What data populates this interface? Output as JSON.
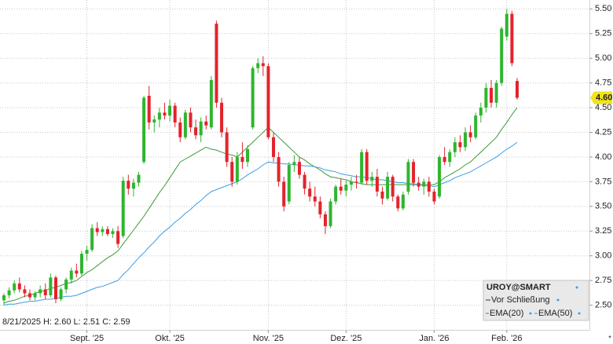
{
  "chart_data": {
    "type": "candlestick",
    "info_line": "8/21/2025 H: 2.60 L: 2.51 C: 2.59",
    "symbol": "UROY@SMART",
    "price_name": "Vor Schließung",
    "up_color": "#2fb52f",
    "down_color": "#e3232c",
    "footnote_mark": "*",
    "categories": [
      null,
      null,
      null,
      null,
      null,
      null,
      null,
      null,
      null,
      null,
      null,
      null,
      null,
      null,
      null,
      null,
      "Sept. '25",
      null,
      null,
      null,
      null,
      null,
      null,
      null,
      null,
      null,
      null,
      null,
      null,
      null,
      null,
      null,
      "Okt. '25",
      null,
      null,
      null,
      null,
      null,
      null,
      null,
      null,
      null,
      null,
      null,
      null,
      null,
      null,
      null,
      null,
      null,
      null,
      "Nov. '25",
      null,
      null,
      null,
      null,
      null,
      null,
      null,
      null,
      null,
      null,
      null,
      null,
      null,
      null,
      "Dez. '25",
      null,
      null,
      null,
      null,
      null,
      null,
      null,
      null,
      null,
      null,
      null,
      null,
      null,
      null,
      null,
      null,
      "Jan. '26",
      null,
      null,
      null,
      null,
      null,
      null,
      null,
      null,
      null,
      null,
      null,
      null,
      null,
      "Feb. '26",
      null,
      null
    ],
    "open": [
      2.55,
      2.6,
      2.65,
      2.72,
      2.66,
      2.62,
      2.58,
      2.62,
      2.66,
      2.6,
      2.78,
      2.56,
      2.66,
      2.76,
      2.85,
      2.82,
      3.02,
      3.06,
      3.28,
      3.24,
      3.27,
      3.22,
      3.25,
      3.2,
      3.76,
      3.68,
      3.74,
      3.95,
      4.62,
      4.35,
      4.38,
      4.45,
      4.42,
      4.52,
      4.35,
      4.2,
      4.45,
      4.3,
      4.22,
      4.36,
      4.3,
      5.35,
      4.55,
      4.25,
      3.95,
      3.75,
      4.0,
      3.95,
      4.3,
      4.9,
      4.95,
      4.92,
      4.2,
      4.0,
      3.75,
      3.55,
      3.92,
      3.95,
      3.82,
      3.68,
      3.6,
      3.55,
      3.42,
      3.3,
      3.55,
      3.7,
      3.66,
      3.72,
      3.75,
      3.74,
      4.05,
      3.76,
      3.8,
      3.65,
      3.58,
      3.8,
      3.6,
      3.48,
      3.65,
      3.95,
      3.74,
      3.7,
      3.75,
      3.65,
      3.6,
      4.0,
      3.95,
      4.05,
      4.15,
      4.1,
      4.25,
      4.2,
      4.42,
      4.5,
      4.7,
      4.55,
      4.75,
      5.22,
      5.45,
      4.77
    ],
    "high": [
      2.62,
      2.68,
      2.75,
      2.78,
      2.7,
      2.66,
      2.64,
      2.7,
      2.72,
      2.82,
      2.8,
      2.68,
      2.78,
      2.88,
      2.92,
      3.05,
      3.1,
      3.32,
      3.34,
      3.3,
      3.3,
      3.28,
      3.3,
      3.8,
      3.82,
      3.78,
      3.85,
      4.62,
      4.72,
      4.42,
      4.5,
      4.55,
      4.58,
      4.55,
      4.4,
      4.48,
      4.5,
      4.38,
      4.4,
      4.42,
      4.82,
      5.38,
      4.6,
      4.3,
      4.0,
      4.05,
      4.15,
      4.12,
      4.92,
      5.0,
      5.02,
      4.95,
      4.25,
      4.05,
      3.8,
      3.95,
      4.02,
      4.0,
      3.85,
      3.75,
      3.7,
      3.6,
      3.45,
      3.58,
      3.72,
      3.78,
      3.76,
      3.8,
      3.82,
      4.08,
      4.08,
      3.85,
      3.88,
      3.7,
      3.85,
      3.82,
      3.62,
      3.65,
      3.98,
      3.98,
      3.8,
      3.78,
      3.8,
      3.68,
      4.02,
      4.1,
      4.08,
      4.2,
      4.22,
      4.3,
      4.32,
      4.45,
      4.55,
      4.75,
      4.78,
      4.78,
      5.32,
      5.5,
      5.48,
      4.8
    ],
    "low": [
      2.5,
      2.57,
      2.62,
      2.63,
      2.58,
      2.55,
      2.55,
      2.58,
      2.56,
      2.58,
      2.52,
      2.54,
      2.62,
      2.72,
      2.78,
      2.8,
      2.95,
      3.04,
      3.2,
      3.2,
      3.2,
      3.18,
      3.08,
      3.18,
      3.62,
      3.6,
      3.7,
      3.93,
      4.28,
      4.25,
      4.3,
      4.38,
      4.36,
      4.3,
      4.15,
      4.18,
      4.25,
      4.18,
      4.15,
      4.28,
      4.28,
      4.5,
      4.2,
      3.9,
      3.7,
      3.72,
      3.88,
      3.9,
      4.28,
      4.85,
      4.82,
      4.18,
      3.95,
      3.7,
      3.45,
      3.52,
      3.85,
      3.78,
      3.62,
      3.55,
      3.5,
      3.38,
      3.22,
      3.28,
      3.52,
      3.62,
      3.6,
      3.66,
      3.68,
      3.72,
      3.72,
      3.7,
      3.6,
      3.52,
      3.56,
      3.55,
      3.45,
      3.46,
      3.62,
      3.7,
      3.66,
      3.62,
      3.6,
      3.52,
      3.58,
      3.92,
      3.9,
      4.0,
      4.05,
      4.06,
      4.15,
      4.18,
      4.35,
      4.45,
      4.5,
      4.5,
      4.72,
      5.18,
      4.92,
      4.58
    ],
    "close": [
      2.6,
      2.65,
      2.72,
      2.66,
      2.62,
      2.58,
      2.62,
      2.66,
      2.6,
      2.78,
      2.56,
      2.66,
      2.76,
      2.85,
      2.82,
      3.02,
      3.06,
      3.28,
      3.24,
      3.27,
      3.22,
      3.25,
      3.12,
      3.76,
      3.68,
      3.74,
      3.82,
      4.6,
      4.35,
      4.38,
      4.45,
      4.42,
      4.52,
      4.35,
      4.2,
      4.45,
      4.3,
      4.22,
      4.36,
      4.32,
      4.78,
      4.55,
      4.25,
      3.95,
      3.75,
      4.0,
      3.95,
      4.08,
      4.9,
      4.95,
      4.92,
      4.2,
      4.0,
      3.75,
      3.5,
      3.92,
      3.95,
      3.82,
      3.68,
      3.6,
      3.55,
      3.42,
      3.3,
      3.55,
      3.7,
      3.66,
      3.72,
      3.75,
      3.74,
      4.05,
      3.76,
      3.8,
      3.65,
      3.58,
      3.8,
      3.6,
      3.48,
      3.62,
      3.95,
      3.74,
      3.7,
      3.75,
      3.65,
      3.55,
      4.0,
      3.95,
      4.05,
      4.15,
      4.1,
      4.25,
      4.2,
      4.42,
      4.5,
      4.7,
      4.55,
      4.75,
      5.3,
      5.45,
      4.95,
      4.6
    ],
    "series": [
      {
        "name": "EMA(20)",
        "color": "#3c9a3c",
        "values": [
          2.52,
          2.54,
          2.55,
          2.57,
          2.59,
          2.6,
          2.62,
          2.64,
          2.65,
          2.67,
          2.68,
          2.7,
          2.72,
          2.73,
          2.75,
          2.79,
          2.83,
          2.86,
          2.9,
          2.94,
          2.98,
          3.01,
          3.05,
          3.12,
          3.19,
          3.26,
          3.33,
          3.4,
          3.48,
          3.56,
          3.64,
          3.71,
          3.79,
          3.87,
          3.95,
          3.98,
          4.01,
          4.04,
          4.07,
          4.1,
          4.08,
          4.07,
          4.05,
          4.03,
          4.02,
          4.0,
          4.05,
          4.1,
          4.15,
          4.2,
          4.25,
          4.3,
          4.25,
          4.2,
          4.15,
          4.1,
          4.05,
          4.0,
          3.97,
          3.93,
          3.9,
          3.87,
          3.83,
          3.8,
          3.79,
          3.78,
          3.77,
          3.75,
          3.74,
          3.73,
          3.72,
          3.72,
          3.72,
          3.72,
          3.72,
          3.72,
          3.72,
          3.72,
          3.72,
          3.72,
          3.72,
          3.72,
          3.72,
          3.72,
          3.75,
          3.79,
          3.82,
          3.85,
          3.88,
          3.92,
          3.95,
          4.0,
          4.05,
          4.1,
          4.15,
          4.2,
          4.28,
          4.35,
          4.43,
          4.5
        ]
      },
      {
        "name": "EMA(50)",
        "color": "#3d9de3",
        "values": [
          2.5,
          2.51,
          2.51,
          2.52,
          2.53,
          2.54,
          2.54,
          2.55,
          2.56,
          2.56,
          2.57,
          2.58,
          2.59,
          2.59,
          2.6,
          2.62,
          2.64,
          2.66,
          2.68,
          2.69,
          2.71,
          2.73,
          2.75,
          2.81,
          2.86,
          2.92,
          2.98,
          3.03,
          3.09,
          3.14,
          3.2,
          3.25,
          3.29,
          3.34,
          3.38,
          3.43,
          3.47,
          3.52,
          3.56,
          3.61,
          3.65,
          3.67,
          3.69,
          3.71,
          3.73,
          3.75,
          3.78,
          3.82,
          3.85,
          3.88,
          3.92,
          3.95,
          3.94,
          3.94,
          3.93,
          3.93,
          3.92,
          3.92,
          3.91,
          3.91,
          3.9,
          3.89,
          3.87,
          3.86,
          3.85,
          3.83,
          3.82,
          3.81,
          3.8,
          3.8,
          3.79,
          3.78,
          3.77,
          3.77,
          3.76,
          3.75,
          3.74,
          3.74,
          3.73,
          3.73,
          3.72,
          3.71,
          3.71,
          3.7,
          3.72,
          3.74,
          3.76,
          3.79,
          3.81,
          3.83,
          3.85,
          3.88,
          3.91,
          3.94,
          3.97,
          4.0,
          4.04,
          4.08,
          4.11,
          4.15
        ]
      }
    ],
    "last_price": {
      "value": 4.6,
      "label": "4.60"
    },
    "ylim": [
      2.25,
      5.59
    ],
    "yticks": [
      {
        "value": 2.5,
        "label": "2.50"
      },
      {
        "value": 2.75,
        "label": "2.75"
      },
      {
        "value": 3,
        "label": "3.00"
      },
      {
        "value": 3.25,
        "label": "3.25"
      },
      {
        "value": 3.5,
        "label": "3.50"
      },
      {
        "value": 3.75,
        "label": "3.75"
      },
      {
        "value": 4,
        "label": "4.00"
      },
      {
        "value": 4.25,
        "label": "4.25"
      },
      {
        "value": 4.5,
        "label": "4.50"
      },
      {
        "value": 4.75,
        "label": "4.75"
      },
      {
        "value": 5,
        "label": "5.00"
      },
      {
        "value": 5.25,
        "label": "5.25"
      },
      {
        "value": 5.5,
        "label": "5.50"
      }
    ],
    "grid": true
  }
}
